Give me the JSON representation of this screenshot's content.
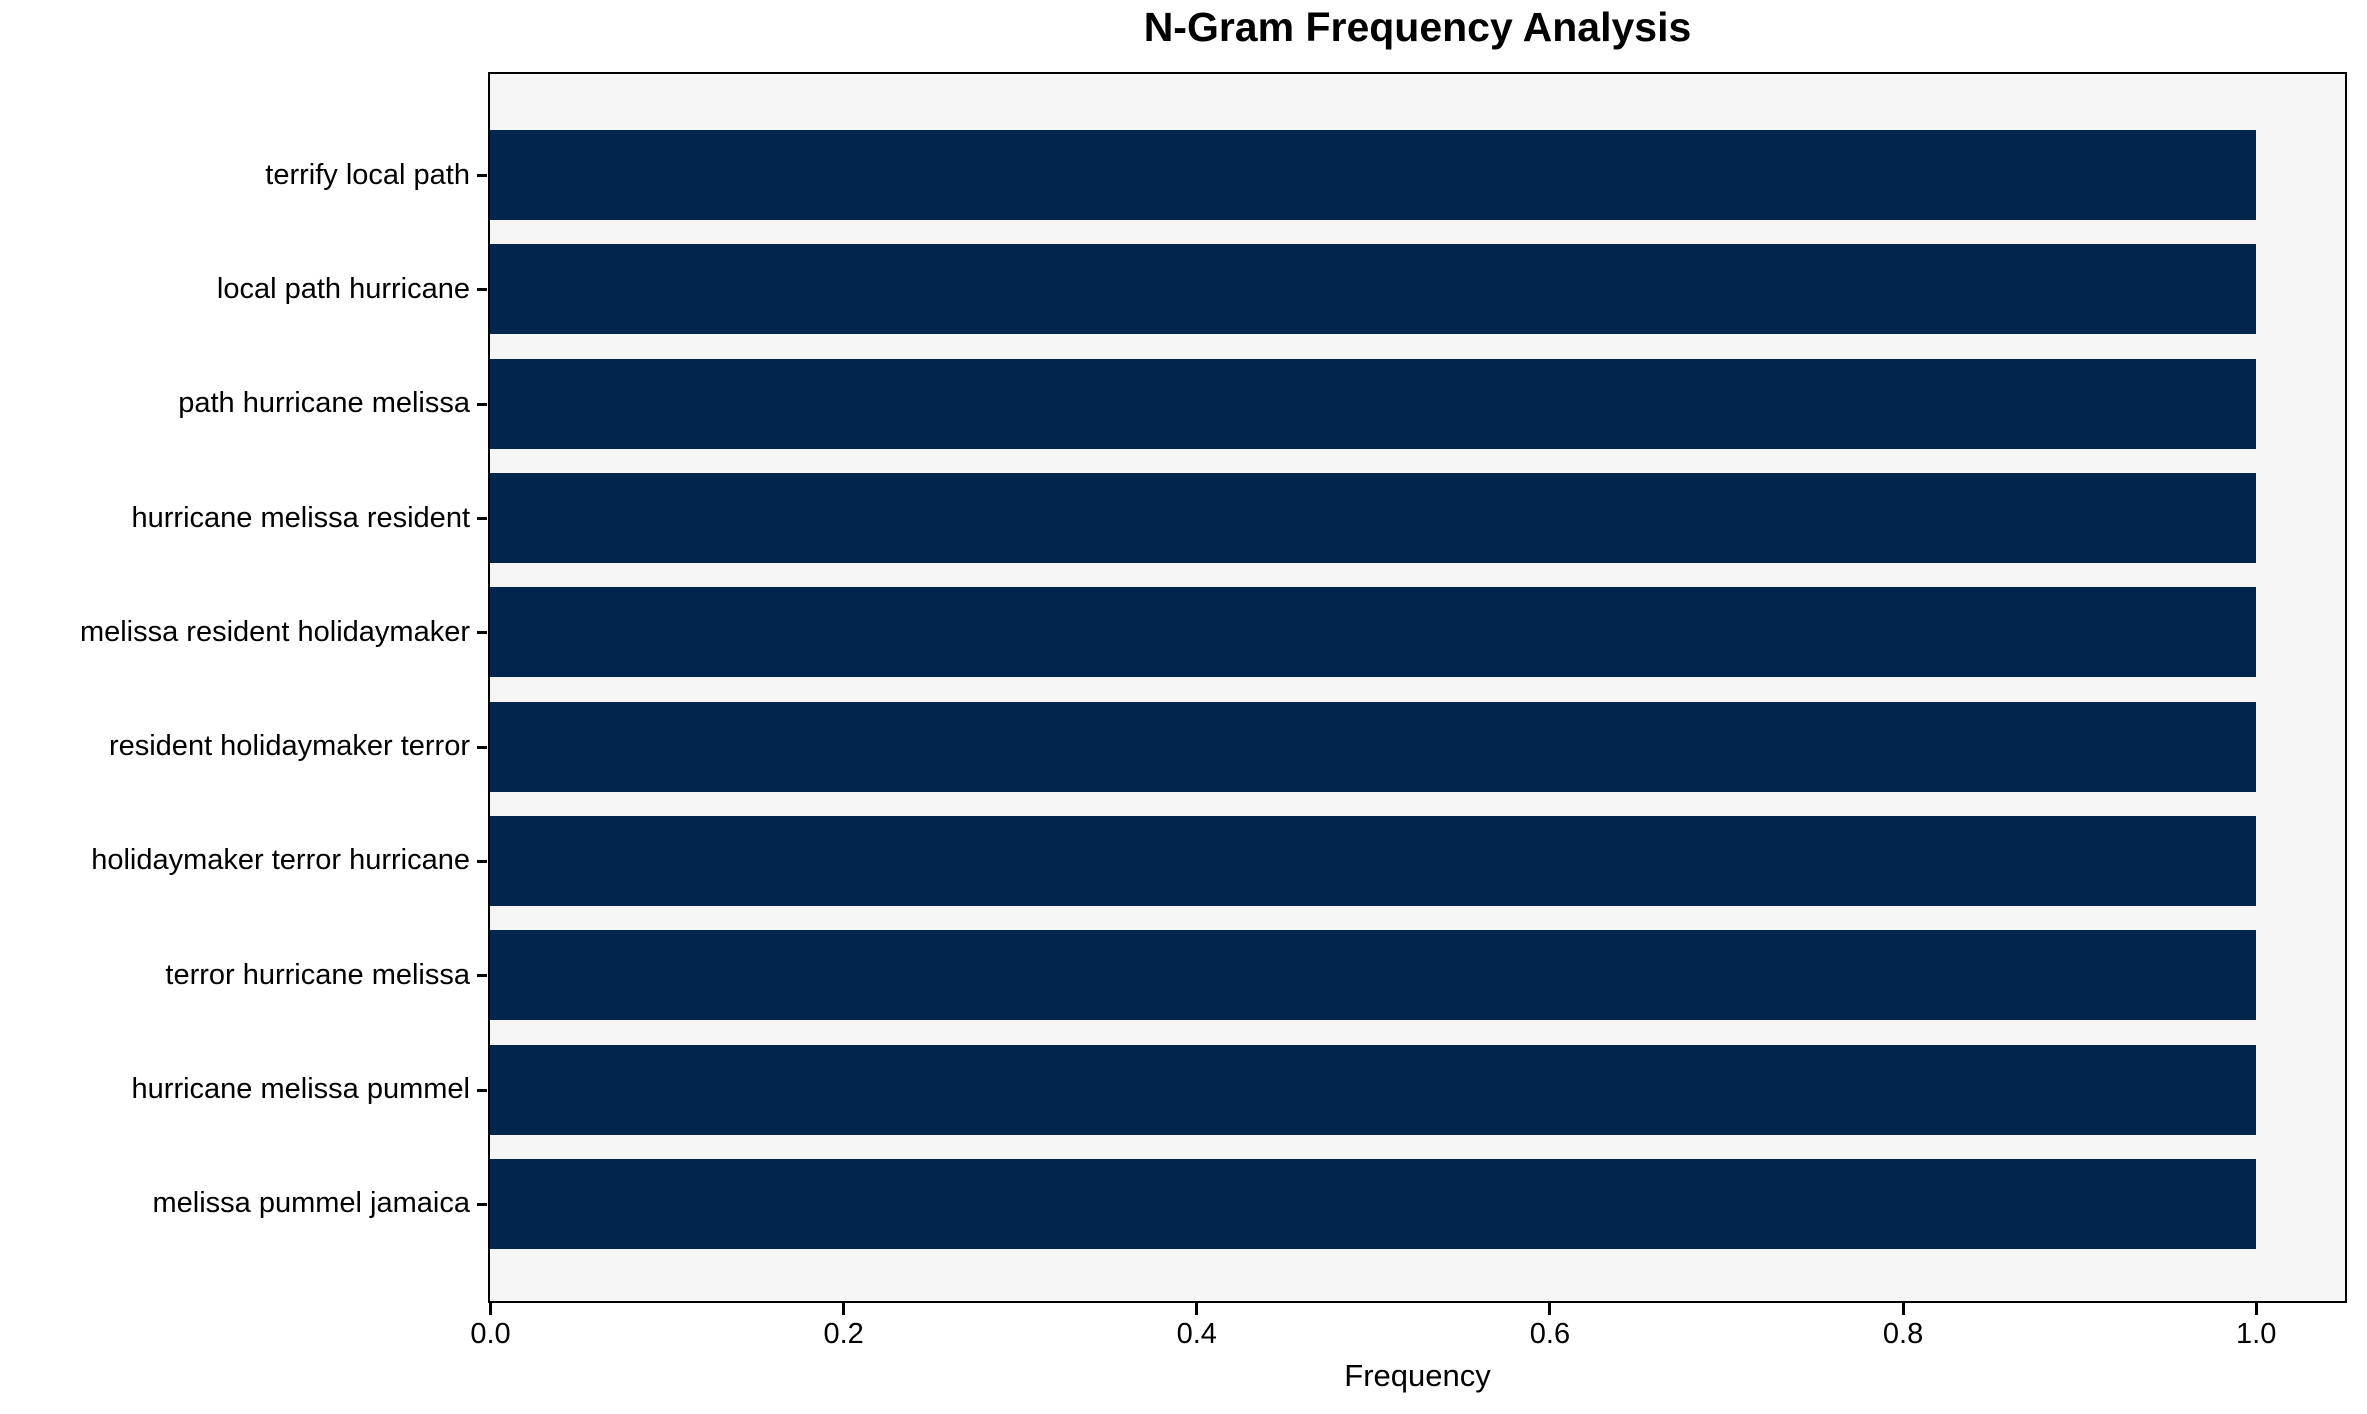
{
  "chart_data": {
    "type": "bar",
    "orientation": "horizontal",
    "title": "N-Gram Frequency Analysis",
    "xlabel": "Frequency",
    "ylabel": "",
    "categories": [
      "terrify local path",
      "local path hurricane",
      "path hurricane melissa",
      "hurricane melissa resident",
      "melissa resident holidaymaker",
      "resident holidaymaker terror",
      "holidaymaker terror hurricane",
      "terror hurricane melissa",
      "hurricane melissa pummel",
      "melissa pummel jamaica"
    ],
    "values": [
      1.0,
      1.0,
      1.0,
      1.0,
      1.0,
      1.0,
      1.0,
      1.0,
      1.0,
      1.0
    ],
    "xticks": {
      "labels": [
        "0.0",
        "0.2",
        "0.4",
        "0.6",
        "0.8",
        "1.0"
      ],
      "values": [
        0.0,
        0.2,
        0.4,
        0.6,
        0.8,
        1.0
      ]
    },
    "xlim": [
      0.0,
      1.05
    ],
    "grid": false,
    "legend": "none",
    "colors": {
      "bar": "#01254d",
      "plot_background": "#f6f6f7",
      "figure_background": "#ffffff",
      "spine": "#000000",
      "text": "#000000"
    }
  }
}
